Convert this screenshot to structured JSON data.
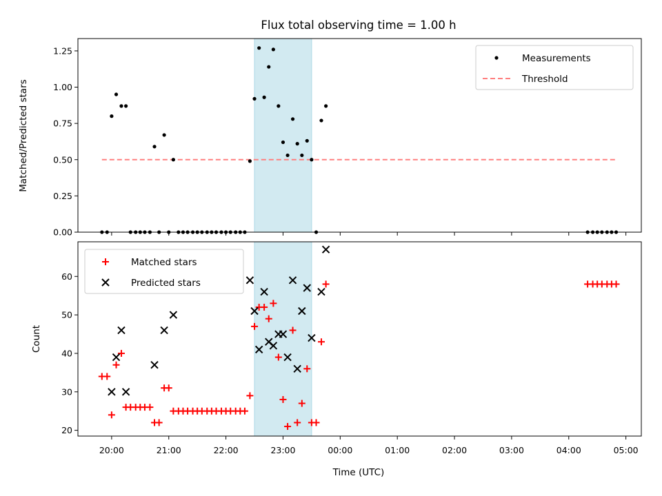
{
  "chart_data": {
    "title": "Flux total observing time = 1.00 h",
    "xlabel": "Time (UTC)",
    "x_ticks": [
      "20:00",
      "21:00",
      "22:00",
      "23:00",
      "00:00",
      "01:00",
      "02:00",
      "03:00",
      "04:00",
      "05:00"
    ],
    "x_tick_hours": [
      20,
      21,
      22,
      23,
      24,
      25,
      26,
      27,
      28,
      29
    ],
    "xlim_hours": [
      19.41,
      29.27
    ],
    "highlight_span_hours": [
      22.5,
      23.5
    ],
    "colors": {
      "measurements": "#000000",
      "threshold": "#ff7f7f",
      "matched": "#ff0000",
      "predicted": "#000000",
      "highlight": "#add8e6"
    },
    "panels": [
      {
        "type": "scatter",
        "ylabel": "Matched/Predicted stars",
        "ylim": [
          0,
          1.335
        ],
        "y_ticks": [
          0.0,
          0.25,
          0.5,
          0.75,
          1.0,
          1.25
        ],
        "y_tick_labels": [
          "0.00",
          "0.25",
          "0.50",
          "0.75",
          "1.00",
          "1.25"
        ],
        "legend_position": "upper right",
        "legend": [
          "Measurements",
          "Threshold"
        ],
        "threshold": {
          "name": "Threshold",
          "value": 0.5,
          "x_range_hours": [
            19.83,
            28.83
          ],
          "style": "dashed"
        },
        "series": [
          {
            "name": "Measurements",
            "marker": "dot",
            "x_hours": [
              19.83,
              19.92,
              20.0,
              20.08,
              20.17,
              20.25,
              20.33,
              20.42,
              20.5,
              20.58,
              20.67,
              20.75,
              20.83,
              20.92,
              21.0,
              21.08,
              21.17,
              21.25,
              21.33,
              21.42,
              21.5,
              21.58,
              21.67,
              21.75,
              21.83,
              21.92,
              22.0,
              22.08,
              22.17,
              22.25,
              22.33,
              22.42,
              22.5,
              22.58,
              22.67,
              22.75,
              22.83,
              22.92,
              23.0,
              23.08,
              23.17,
              23.25,
              23.33,
              23.42,
              23.5,
              23.58,
              23.67,
              23.75,
              28.33,
              28.42,
              28.5,
              28.58,
              28.67,
              28.75,
              28.83
            ],
            "y": [
              0,
              0,
              0.8,
              0.95,
              0.87,
              0.87,
              0,
              0,
              0,
              0,
              0,
              0.59,
              0,
              0.67,
              0,
              0.5,
              0,
              0,
              0,
              0,
              0,
              0,
              0,
              0,
              0,
              0,
              0,
              0,
              0,
              0,
              0,
              0.49,
              0.92,
              1.27,
              0.93,
              1.14,
              1.26,
              0.87,
              0.62,
              0.53,
              0.78,
              0.61,
              0.53,
              0.63,
              0.5,
              0,
              0.77,
              0.87,
              0,
              0,
              0,
              0,
              0,
              0,
              0
            ]
          }
        ]
      },
      {
        "type": "scatter",
        "ylabel": "Count",
        "ylim": [
          18.5,
          69.0
        ],
        "y_ticks": [
          20,
          30,
          40,
          50,
          60
        ],
        "y_tick_labels": [
          "20",
          "30",
          "40",
          "50",
          "60"
        ],
        "legend_position": "upper left",
        "legend": [
          "Matched stars",
          "Predicted stars"
        ],
        "series": [
          {
            "name": "Matched stars",
            "marker": "plus",
            "x_hours": [
              19.83,
              19.92,
              20.0,
              20.08,
              20.17,
              20.25,
              20.33,
              20.42,
              20.5,
              20.58,
              20.67,
              20.75,
              20.83,
              20.92,
              21.0,
              21.08,
              21.17,
              21.25,
              21.33,
              21.42,
              21.5,
              21.58,
              21.67,
              21.75,
              21.83,
              21.92,
              22.0,
              22.08,
              22.17,
              22.25,
              22.33,
              22.42,
              22.5,
              22.58,
              22.67,
              22.75,
              22.83,
              22.92,
              23.0,
              23.08,
              23.17,
              23.25,
              23.33,
              23.42,
              23.5,
              23.58,
              23.67,
              23.75,
              28.33,
              28.42,
              28.5,
              28.58,
              28.67,
              28.75,
              28.83
            ],
            "y": [
              34,
              34,
              24,
              37,
              40,
              26,
              26,
              26,
              26,
              26,
              26,
              22,
              22,
              31,
              31,
              25,
              25,
              25,
              25,
              25,
              25,
              25,
              25,
              25,
              25,
              25,
              25,
              25,
              25,
              25,
              25,
              29,
              47,
              52,
              52,
              49,
              53,
              39,
              28,
              21,
              46,
              22,
              27,
              36,
              22,
              22,
              43,
              58,
              58,
              58,
              58,
              58,
              58,
              58,
              58
            ]
          },
          {
            "name": "Predicted stars",
            "marker": "x",
            "x_hours": [
              20.0,
              20.08,
              20.17,
              20.25,
              20.75,
              20.92,
              21.08,
              22.42,
              22.5,
              22.58,
              22.67,
              22.75,
              22.83,
              22.92,
              23.0,
              23.08,
              23.17,
              23.25,
              23.33,
              23.42,
              23.5,
              23.67,
              23.75
            ],
            "y": [
              30,
              39,
              46,
              30,
              37,
              46,
              50,
              59,
              51,
              41,
              56,
              43,
              42,
              45,
              45,
              39,
              59,
              36,
              51,
              57,
              44,
              56,
              67
            ]
          }
        ]
      }
    ]
  }
}
